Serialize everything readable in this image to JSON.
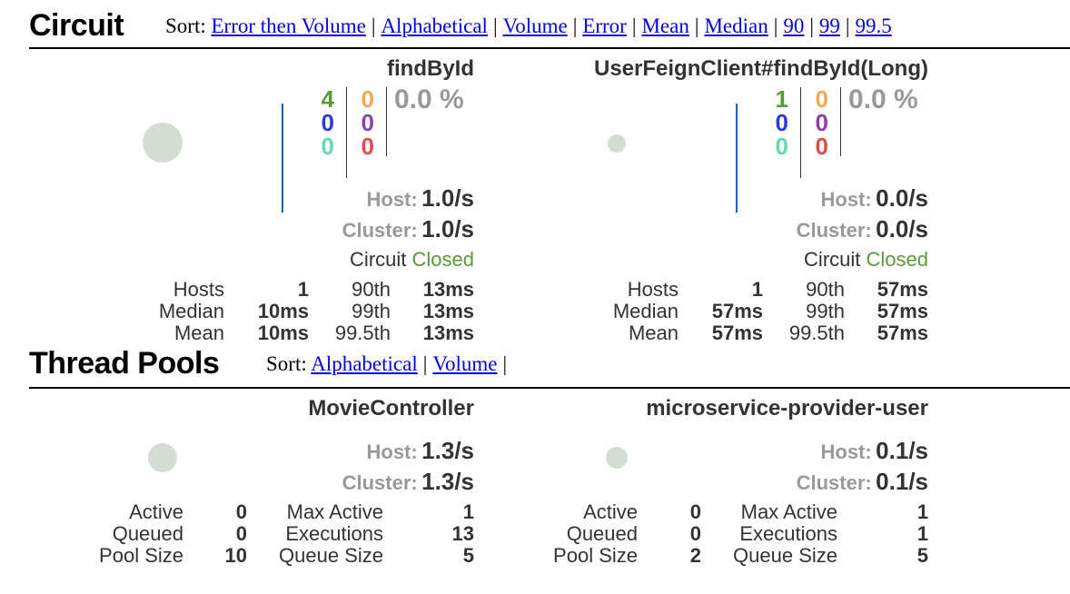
{
  "circuit_section": {
    "title": "Circuit",
    "sort_label": "Sort:",
    "sort_links": [
      "Error then Volume",
      "Alphabetical",
      "Volume",
      "Error",
      "Mean",
      "Median",
      "90",
      "99",
      "99.5"
    ],
    "monitors": [
      {
        "name": "findById",
        "counts": {
          "success": "4",
          "short_circuited": "0",
          "bad_request": "0",
          "timeout": "0",
          "rejected": "0",
          "failure": "0"
        },
        "error_percent": "0.0 %",
        "host_label": "Host:",
        "host_rate": "1.0/s",
        "cluster_label": "Cluster:",
        "cluster_rate": "1.0/s",
        "circuit_label": "Circuit",
        "circuit_state": "Closed",
        "stats": {
          "hosts_label": "Hosts",
          "hosts": "1",
          "median_label": "Median",
          "median": "10ms",
          "mean_label": "Mean",
          "mean": "10ms",
          "p90_label": "90th",
          "p90": "13ms",
          "p99_label": "99th",
          "p99": "13ms",
          "p995_label": "99.5th",
          "p995": "13ms"
        }
      },
      {
        "name": "UserFeignClient#findById(Long)",
        "counts": {
          "success": "1",
          "short_circuited": "0",
          "bad_request": "0",
          "timeout": "0",
          "rejected": "0",
          "failure": "0"
        },
        "error_percent": "0.0 %",
        "host_label": "Host:",
        "host_rate": "0.0/s",
        "cluster_label": "Cluster:",
        "cluster_rate": "0.0/s",
        "circuit_label": "Circuit",
        "circuit_state": "Closed",
        "stats": {
          "hosts_label": "Hosts",
          "hosts": "1",
          "median_label": "Median",
          "median": "57ms",
          "mean_label": "Mean",
          "mean": "57ms",
          "p90_label": "90th",
          "p90": "57ms",
          "p99_label": "99th",
          "p99": "57ms",
          "p995_label": "99.5th",
          "p995": "57ms"
        }
      }
    ]
  },
  "threadpool_section": {
    "title": "Thread Pools",
    "sort_label": "Sort:",
    "sort_links": [
      "Alphabetical",
      "Volume"
    ],
    "pools": [
      {
        "name": "MovieController",
        "host_label": "Host:",
        "host_rate": "1.3/s",
        "cluster_label": "Cluster:",
        "cluster_rate": "1.3/s",
        "stats": {
          "active_label": "Active",
          "active": "0",
          "queued_label": "Queued",
          "queued": "0",
          "pool_size_label": "Pool Size",
          "pool_size": "10",
          "max_active_label": "Max Active",
          "max_active": "1",
          "executions_label": "Executions",
          "executions": "13",
          "queue_size_label": "Queue Size",
          "queue_size": "5"
        }
      },
      {
        "name": "microservice-provider-user",
        "host_label": "Host:",
        "host_rate": "0.1/s",
        "cluster_label": "Cluster:",
        "cluster_rate": "0.1/s",
        "stats": {
          "active_label": "Active",
          "active": "0",
          "queued_label": "Queued",
          "queued": "0",
          "pool_size_label": "Pool Size",
          "pool_size": "2",
          "max_active_label": "Max Active",
          "max_active": "1",
          "executions_label": "Executions",
          "executions": "1",
          "queue_size_label": "Queue Size",
          "queue_size": "5"
        }
      }
    ]
  }
}
